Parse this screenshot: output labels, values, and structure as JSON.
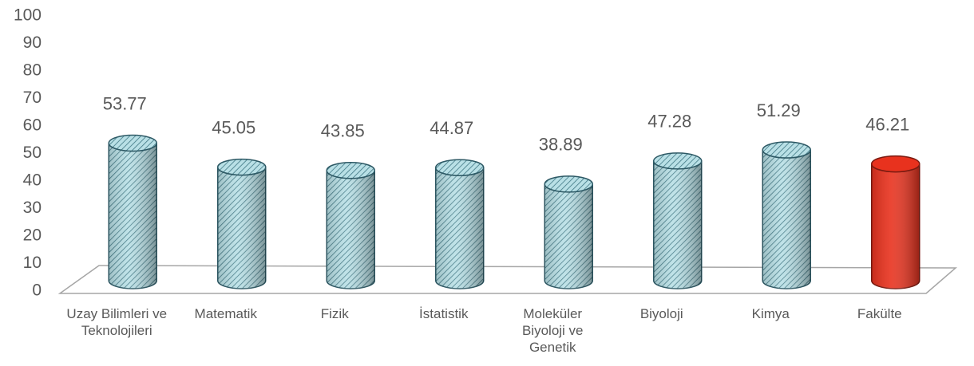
{
  "chart_data": {
    "type": "bar",
    "categories": [
      "Uzay Bilimleri ve Teknolojileri",
      "Matematik",
      "Fizik",
      "İstatistik",
      "Moleküler Biyoloji ve Genetik",
      "Biyoloji",
      "Kimya",
      "Fakülte"
    ],
    "values": [
      53.77,
      45.05,
      43.85,
      44.87,
      38.89,
      47.28,
      51.29,
      46.21
    ],
    "colors": [
      "#a9d6dd",
      "#a9d6dd",
      "#a9d6dd",
      "#a9d6dd",
      "#a9d6dd",
      "#a9d6dd",
      "#a9d6dd",
      "#e8321e"
    ],
    "hatch": [
      true,
      true,
      true,
      true,
      true,
      true,
      true,
      false
    ],
    "ylim": [
      0,
      100
    ],
    "yticks": [
      0,
      10,
      20,
      30,
      40,
      50,
      60,
      70,
      80,
      90,
      100
    ],
    "grid": false
  }
}
